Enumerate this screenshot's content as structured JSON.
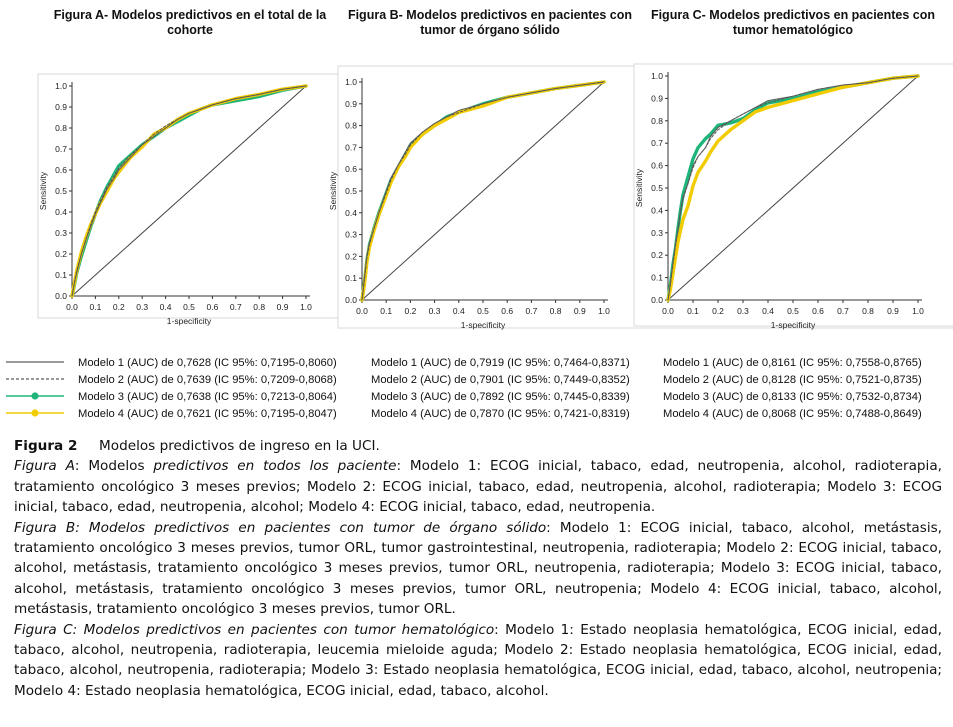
{
  "panels": [
    {
      "title_line1": "Figura A- Modelos predictivos en el total de la",
      "title_line2": "cohorte"
    },
    {
      "title_line1": "Figura B- Modelos predictivos  en pacientes con",
      "title_line2": "tumor de órgano sólido"
    },
    {
      "title_line1": "Figura C- Modelos predictivos en pacientes con",
      "title_line2": "tumor hematológico"
    }
  ],
  "chart_data": [
    {
      "type": "line",
      "title": "Figura A- Modelos predictivos en el total de la cohorte",
      "xlabel": "1-specificity",
      "ylabel": "Sensitivity",
      "xlim": [
        0,
        1
      ],
      "ylim": [
        0,
        1
      ],
      "ticks": [
        "0.0",
        "0.1",
        "0.2",
        "0.3",
        "0.4",
        "0.5",
        "0.6",
        "0.7",
        "0.8",
        "0.9",
        "1.0"
      ],
      "reference_line": true,
      "series": [
        {
          "name": "Modelo 1 (AUC) de 0,7628 (IC 95%: 0,7195-0,8060)",
          "color": "#5a5a5a",
          "style": "solid",
          "x": [
            0,
            0.01,
            0.02,
            0.04,
            0.06,
            0.08,
            0.1,
            0.12,
            0.15,
            0.18,
            0.2,
            0.25,
            0.3,
            0.35,
            0.4,
            0.45,
            0.5,
            0.55,
            0.6,
            0.7,
            0.8,
            0.9,
            1.0
          ],
          "y": [
            0,
            0.06,
            0.11,
            0.2,
            0.27,
            0.33,
            0.39,
            0.44,
            0.51,
            0.56,
            0.6,
            0.66,
            0.72,
            0.76,
            0.8,
            0.84,
            0.87,
            0.89,
            0.91,
            0.94,
            0.96,
            0.985,
            1.0
          ]
        },
        {
          "name": "Modelo 2 (AUC) de 0,7639 (IC 95%: 0,7209-0,8068)",
          "color": "#555555",
          "style": "dashed",
          "x": [
            0,
            0.01,
            0.02,
            0.04,
            0.06,
            0.08,
            0.1,
            0.12,
            0.15,
            0.18,
            0.2,
            0.25,
            0.3,
            0.35,
            0.4,
            0.45,
            0.5,
            0.55,
            0.6,
            0.7,
            0.8,
            0.9,
            1.0
          ],
          "y": [
            0,
            0.06,
            0.12,
            0.2,
            0.27,
            0.34,
            0.4,
            0.45,
            0.52,
            0.57,
            0.61,
            0.67,
            0.72,
            0.77,
            0.81,
            0.84,
            0.87,
            0.89,
            0.91,
            0.94,
            0.96,
            0.985,
            1.0
          ]
        },
        {
          "name": "Modelo 3 (AUC) de 0,7638 (IC 95%: 0,7213-0,8064)",
          "color": "#1fb57a",
          "style": "marker",
          "x": [
            0,
            0.01,
            0.02,
            0.04,
            0.06,
            0.08,
            0.1,
            0.12,
            0.15,
            0.18,
            0.2,
            0.25,
            0.3,
            0.35,
            0.4,
            0.45,
            0.5,
            0.55,
            0.6,
            0.7,
            0.8,
            0.9,
            1.0
          ],
          "y": [
            0,
            0.05,
            0.11,
            0.19,
            0.26,
            0.33,
            0.39,
            0.45,
            0.52,
            0.58,
            0.62,
            0.67,
            0.72,
            0.76,
            0.8,
            0.83,
            0.86,
            0.89,
            0.91,
            0.93,
            0.95,
            0.98,
            1.0
          ]
        },
        {
          "name": "Modelo 4 (AUC) de 0,7621 (IC 95%: 0,7195-0,8047)",
          "color": "#f2cc00",
          "style": "marker",
          "x": [
            0,
            0.01,
            0.02,
            0.04,
            0.06,
            0.08,
            0.1,
            0.12,
            0.15,
            0.18,
            0.2,
            0.25,
            0.3,
            0.35,
            0.4,
            0.45,
            0.5,
            0.55,
            0.6,
            0.7,
            0.8,
            0.9,
            1.0
          ],
          "y": [
            0,
            0.06,
            0.12,
            0.21,
            0.28,
            0.34,
            0.39,
            0.44,
            0.5,
            0.56,
            0.59,
            0.66,
            0.71,
            0.77,
            0.8,
            0.84,
            0.87,
            0.89,
            0.91,
            0.94,
            0.96,
            0.985,
            1.0
          ]
        }
      ]
    },
    {
      "type": "line",
      "title": "Figura B- Modelos predictivos en pacientes con tumor de órgano sólido",
      "xlabel": "1-specificity",
      "ylabel": "Sensitivity",
      "xlim": [
        0,
        1
      ],
      "ylim": [
        0,
        1
      ],
      "ticks": [
        "0.0",
        "0.1",
        "0.2",
        "0.3",
        "0.4",
        "0.5",
        "0.6",
        "0.7",
        "0.8",
        "0.9",
        "1.0"
      ],
      "reference_line": true,
      "series": [
        {
          "name": "Modelo 1 (AUC) de 0,7919 (IC 95%: 0,7464-0,8371)",
          "color": "#5a5a5a",
          "style": "solid",
          "x": [
            0,
            0.01,
            0.02,
            0.03,
            0.05,
            0.07,
            0.1,
            0.12,
            0.15,
            0.18,
            0.2,
            0.25,
            0.3,
            0.35,
            0.4,
            0.5,
            0.6,
            0.7,
            0.8,
            0.9,
            1.0
          ],
          "y": [
            0,
            0.1,
            0.2,
            0.26,
            0.33,
            0.4,
            0.5,
            0.56,
            0.62,
            0.68,
            0.72,
            0.77,
            0.81,
            0.84,
            0.87,
            0.9,
            0.93,
            0.95,
            0.97,
            0.985,
            1.0
          ]
        },
        {
          "name": "Modelo 2 (AUC) de 0,7901 (IC 95%: 0,7449-0,8352)",
          "color": "#555555",
          "style": "dashed",
          "x": [
            0,
            0.01,
            0.02,
            0.03,
            0.05,
            0.07,
            0.1,
            0.12,
            0.15,
            0.18,
            0.2,
            0.25,
            0.3,
            0.35,
            0.4,
            0.5,
            0.6,
            0.7,
            0.8,
            0.9,
            1.0
          ],
          "y": [
            0,
            0.09,
            0.19,
            0.25,
            0.33,
            0.4,
            0.49,
            0.55,
            0.62,
            0.67,
            0.71,
            0.77,
            0.81,
            0.84,
            0.86,
            0.9,
            0.93,
            0.95,
            0.97,
            0.985,
            1.0
          ]
        },
        {
          "name": "Modelo 3 (AUC) de 0,7892 (IC 95%: 0,7445-0,8339)",
          "color": "#1fb57a",
          "style": "marker",
          "x": [
            0,
            0.01,
            0.02,
            0.03,
            0.05,
            0.07,
            0.1,
            0.12,
            0.15,
            0.18,
            0.2,
            0.25,
            0.3,
            0.35,
            0.4,
            0.5,
            0.6,
            0.7,
            0.8,
            0.9,
            1.0
          ],
          "y": [
            0,
            0.08,
            0.18,
            0.25,
            0.33,
            0.4,
            0.49,
            0.55,
            0.61,
            0.67,
            0.71,
            0.76,
            0.8,
            0.84,
            0.86,
            0.9,
            0.93,
            0.95,
            0.97,
            0.985,
            1.0
          ]
        },
        {
          "name": "Modelo 4 (AUC) de 0,7870 (IC 95%: 0,7421-0,8319)",
          "color": "#f2cc00",
          "style": "marker",
          "x": [
            0,
            0.01,
            0.02,
            0.03,
            0.05,
            0.07,
            0.1,
            0.12,
            0.15,
            0.18,
            0.2,
            0.25,
            0.3,
            0.35,
            0.4,
            0.5,
            0.6,
            0.7,
            0.8,
            0.9,
            1.0
          ],
          "y": [
            0,
            0.07,
            0.17,
            0.24,
            0.32,
            0.39,
            0.48,
            0.54,
            0.61,
            0.66,
            0.7,
            0.76,
            0.8,
            0.83,
            0.86,
            0.89,
            0.93,
            0.95,
            0.97,
            0.985,
            1.0
          ]
        }
      ]
    },
    {
      "type": "line",
      "title": "Figura C- Modelos predictivos en pacientes con tumor hematológico",
      "xlabel": "1-specificity",
      "ylabel": "Sensitivity",
      "xlim": [
        0,
        1
      ],
      "ylim": [
        0,
        1
      ],
      "ticks": [
        "0.0",
        "0.1",
        "0.2",
        "0.3",
        "0.4",
        "0.5",
        "0.6",
        "0.7",
        "0.8",
        "0.9",
        "1.0"
      ],
      "reference_line": true,
      "series": [
        {
          "name": "Modelo 1 (AUC) de 0,8161 (IC 95%: 0,7558-0,8765)",
          "color": "#5a5a5a",
          "style": "solid",
          "x": [
            0,
            0.01,
            0.02,
            0.03,
            0.04,
            0.05,
            0.06,
            0.08,
            0.1,
            0.12,
            0.15,
            0.17,
            0.2,
            0.25,
            0.3,
            0.35,
            0.4,
            0.5,
            0.6,
            0.7,
            0.8,
            0.9,
            1.0
          ],
          "y": [
            0,
            0.08,
            0.17,
            0.25,
            0.32,
            0.4,
            0.46,
            0.52,
            0.6,
            0.64,
            0.68,
            0.73,
            0.77,
            0.8,
            0.83,
            0.86,
            0.89,
            0.91,
            0.94,
            0.96,
            0.97,
            0.99,
            1.0
          ]
        },
        {
          "name": "Modelo 2 (AUC) de 0,8128 (IC 95%: 0,7521-0,8735)",
          "color": "#555555",
          "style": "dashed",
          "x": [
            0,
            0.01,
            0.02,
            0.03,
            0.04,
            0.05,
            0.06,
            0.08,
            0.1,
            0.12,
            0.15,
            0.17,
            0.2,
            0.25,
            0.3,
            0.35,
            0.4,
            0.5,
            0.6,
            0.7,
            0.8,
            0.9,
            1.0
          ],
          "y": [
            0,
            0.07,
            0.16,
            0.24,
            0.31,
            0.39,
            0.45,
            0.52,
            0.59,
            0.64,
            0.68,
            0.72,
            0.76,
            0.8,
            0.83,
            0.86,
            0.88,
            0.91,
            0.94,
            0.96,
            0.97,
            0.99,
            1.0
          ]
        },
        {
          "name": "Modelo 3 (AUC) de 0,8133 (IC 95%: 0,7532-0,8734)",
          "color": "#1fb57a",
          "style": "marker",
          "x": [
            0,
            0.01,
            0.02,
            0.03,
            0.04,
            0.05,
            0.06,
            0.08,
            0.1,
            0.12,
            0.15,
            0.17,
            0.2,
            0.25,
            0.3,
            0.35,
            0.4,
            0.5,
            0.6,
            0.7,
            0.8,
            0.9,
            1.0
          ],
          "y": [
            0,
            0.07,
            0.16,
            0.23,
            0.32,
            0.4,
            0.47,
            0.55,
            0.63,
            0.68,
            0.72,
            0.74,
            0.78,
            0.79,
            0.81,
            0.85,
            0.88,
            0.9,
            0.93,
            0.95,
            0.97,
            0.99,
            1.0
          ]
        },
        {
          "name": "Modelo 4 (AUC) de 0,8068 (IC 95%: 0,7488-0,8649)",
          "color": "#f2cc00",
          "style": "marker",
          "x": [
            0,
            0.01,
            0.02,
            0.03,
            0.04,
            0.05,
            0.06,
            0.08,
            0.1,
            0.12,
            0.15,
            0.17,
            0.2,
            0.25,
            0.3,
            0.35,
            0.4,
            0.5,
            0.6,
            0.7,
            0.8,
            0.9,
            1.0
          ],
          "y": [
            0,
            0.05,
            0.12,
            0.19,
            0.26,
            0.31,
            0.36,
            0.42,
            0.51,
            0.57,
            0.62,
            0.66,
            0.71,
            0.76,
            0.8,
            0.84,
            0.86,
            0.89,
            0.92,
            0.95,
            0.97,
            0.99,
            1.0
          ]
        }
      ]
    }
  ],
  "caption": {
    "heading_label": "Figura 2",
    "heading_text": "Modelos predictivos de ingreso en la UCI.",
    "a_label": "Figura A",
    "a_colon": ": Modelos ",
    "a_subtitle": "predictivos en todos los paciente",
    "a_body": ": Modelo 1: ECOG inicial, tabaco, edad, neutropenia, alcohol, radioterapia, tratamiento oncológico 3 meses previos; Modelo 2: ECOG inicial, tabaco, edad, neutropenia, alcohol, radioterapia; Modelo 3: ECOG inicial, tabaco, edad, neutropenia, alcohol; Modelo 4: ECOG inicial, tabaco, edad, neutropenia.",
    "b_label": "Figura B: Modelos predictivos en pacientes con tumor de órgano sólido",
    "b_body": ": Modelo 1: ECOG inicial, tabaco, alcohol, metástasis, tratamiento oncológico 3 meses previos, tumor ORL, tumor gastrointestinal, neutropenia, radioterapia; Modelo 2: ECOG inicial, tabaco, alcohol, metástasis, tratamiento oncológico 3 meses previos, tumor ORL, neutropenia, radioterapia; Modelo 3: ECOG inicial, tabaco, alcohol, metástasis, tratamiento oncológico 3 meses previos, tumor ORL, neutropenia; Modelo 4: ECOG inicial, tabaco, alcohol, metástasis, tratamiento oncológico 3 meses previos, tumor ORL.",
    "c_label": "Figura C: Modelos predictivos en pacientes con tumor hematológico",
    "c_body": ": Modelo 1: Estado neoplasia hematológica, ECOG inicial, edad, tabaco, alcohol, neutropenia, radioterapia, leucemia mieloide aguda; Modelo 2: Estado neoplasia hematológica, ECOG inicial, edad, tabaco, alcohol, neutropenia, radioterapia; Modelo 3: Estado neoplasia hematológica, ECOG inicial, edad, tabaco, alcohol, neutropenia; Modelo 4: Estado neoplasia hematológica, ECOG inicial, edad, tabaco, alcohol."
  }
}
